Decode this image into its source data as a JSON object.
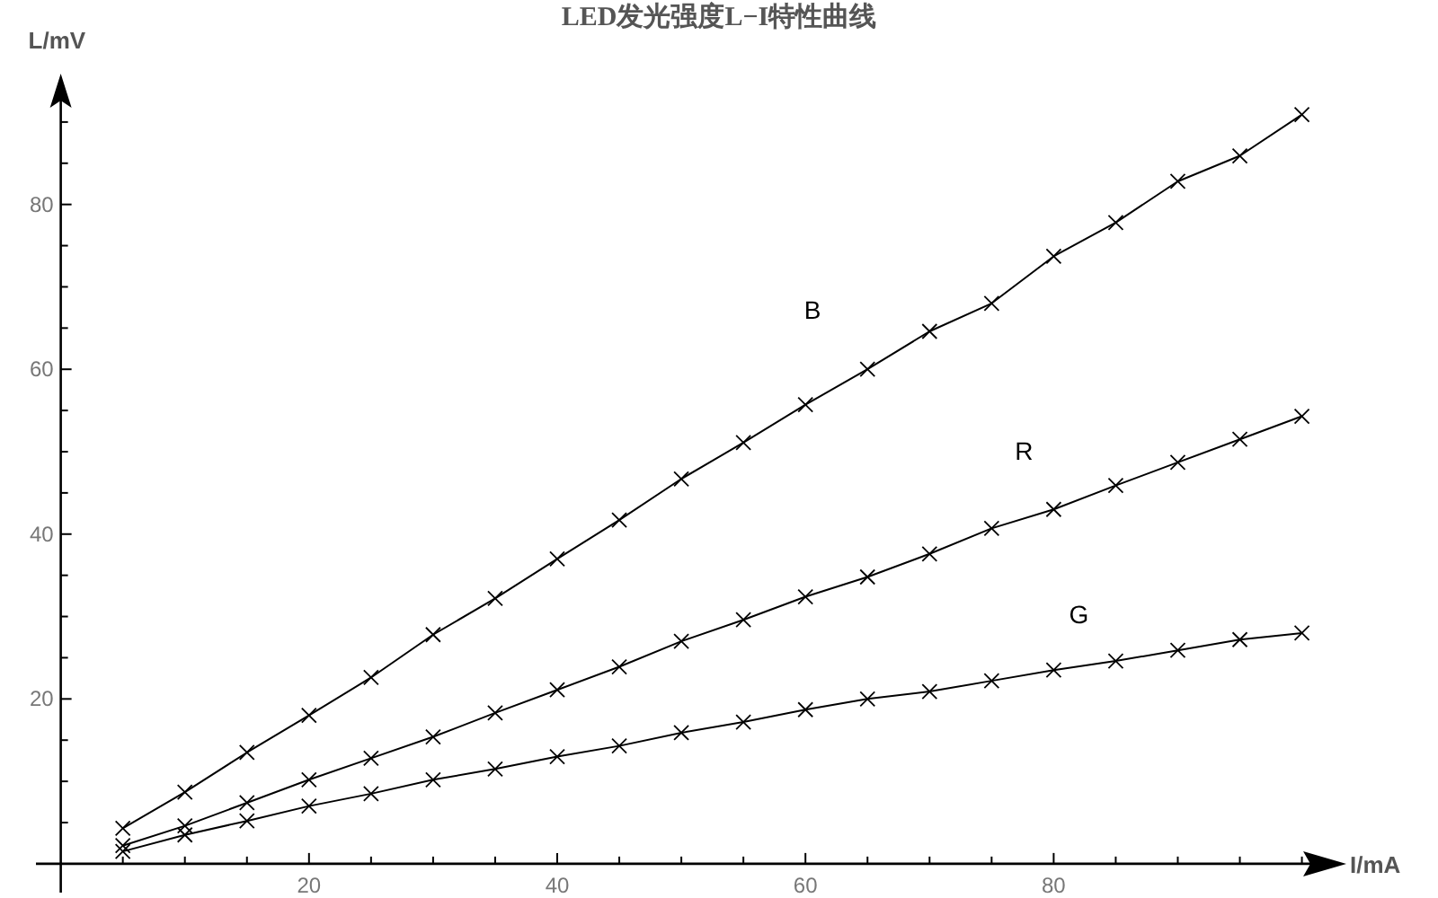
{
  "chart_data": {
    "type": "line",
    "title": "LED发光强度L−I特性曲线",
    "xlabel": "I/mA",
    "ylabel": "L/mV",
    "x": [
      5,
      10,
      15,
      20,
      25,
      30,
      35,
      40,
      45,
      50,
      55,
      60,
      65,
      70,
      75,
      80,
      85,
      90,
      95,
      100
    ],
    "series": [
      {
        "name": "B",
        "color": "#000000",
        "values": [
          4.3,
          8.7,
          13.5,
          18,
          22.6,
          27.8,
          32.2,
          37,
          41.7,
          46.7,
          51.1,
          55.7,
          60,
          64.6,
          68,
          73.7,
          77.8,
          82.8,
          85.9,
          90.9
        ]
      },
      {
        "name": "R",
        "color": "#000000",
        "values": [
          2.2,
          4.6,
          7.4,
          10.2,
          12.8,
          15.4,
          18.3,
          21.1,
          23.9,
          27,
          29.6,
          32.4,
          34.8,
          37.6,
          40.7,
          43,
          45.9,
          48.7,
          51.5,
          54.3
        ]
      },
      {
        "name": "G",
        "color": "#000000",
        "values": [
          1.5,
          3.5,
          5.2,
          7,
          8.5,
          10.2,
          11.5,
          13,
          14.3,
          15.9,
          17.2,
          18.7,
          20,
          20.9,
          22.2,
          23.5,
          24.6,
          25.9,
          27.2,
          28
        ]
      }
    ],
    "xlim": [
      -2,
      103
    ],
    "ylim": [
      -3.5,
      95
    ],
    "xticks": [
      {
        "value": 5,
        "label": null
      },
      {
        "value": 10,
        "label": null
      },
      {
        "value": 15,
        "label": null
      },
      20,
      {
        "value": 25,
        "label": null
      },
      {
        "value": 30,
        "label": null
      },
      {
        "value": 35,
        "label": null
      },
      40,
      {
        "value": 45,
        "label": null
      },
      {
        "value": 50,
        "label": null
      },
      {
        "value": 55,
        "label": null
      },
      60,
      {
        "value": 65,
        "label": null
      },
      {
        "value": 70,
        "label": null
      },
      {
        "value": 75,
        "label": null
      },
      80,
      {
        "value": 85,
        "label": null
      },
      {
        "value": 90,
        "label": null
      },
      {
        "value": 95,
        "label": null
      },
      {
        "value": 100,
        "label": null
      }
    ],
    "yticks": [
      {
        "value": 5,
        "label": null
      },
      {
        "value": 10,
        "label": null
      },
      {
        "value": 15,
        "label": null
      },
      20,
      {
        "value": 25,
        "label": null
      },
      {
        "value": 30,
        "label": null
      },
      {
        "value": 35,
        "label": null
      },
      40,
      {
        "value": 45,
        "label": null
      },
      {
        "value": 50,
        "label": null
      },
      {
        "value": 55,
        "label": null
      },
      60,
      {
        "value": 65,
        "label": null
      },
      {
        "value": 70,
        "label": null
      },
      {
        "value": 75,
        "label": null
      },
      80,
      {
        "value": 85,
        "label": null
      },
      {
        "value": 90,
        "label": null
      }
    ],
    "grid": false,
    "marker": "cross",
    "line_style": "solid"
  }
}
